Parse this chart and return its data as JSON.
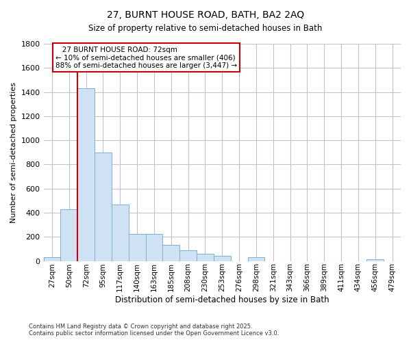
{
  "title_line1": "27, BURNT HOUSE ROAD, BATH, BA2 2AQ",
  "title_line2": "Size of property relative to semi-detached houses in Bath",
  "xlabel": "Distribution of semi-detached houses by size in Bath",
  "ylabel": "Number of semi-detached properties",
  "categories": [
    "27sqm",
    "50sqm",
    "72sqm",
    "95sqm",
    "117sqm",
    "140sqm",
    "163sqm",
    "185sqm",
    "208sqm",
    "230sqm",
    "253sqm",
    "276sqm",
    "298sqm",
    "321sqm",
    "343sqm",
    "366sqm",
    "389sqm",
    "411sqm",
    "434sqm",
    "456sqm",
    "479sqm"
  ],
  "values": [
    30,
    430,
    1430,
    900,
    470,
    225,
    225,
    135,
    90,
    60,
    45,
    0,
    30,
    0,
    0,
    0,
    0,
    0,
    0,
    15,
    0
  ],
  "bar_color": "#cfe2f3",
  "bar_edge_color": "#7ab0d4",
  "property_size": "72sqm",
  "property_label": "27 BURNT HOUSE ROAD: 72sqm",
  "pct_smaller": 10,
  "n_smaller": 406,
  "pct_larger": 88,
  "n_larger": 3447,
  "annotation_box_color": "#cc0000",
  "vline_color": "#cc0000",
  "background_color": "#ffffff",
  "grid_color": "#c0c0d0",
  "ylim": [
    0,
    1800
  ],
  "yticks": [
    0,
    200,
    400,
    600,
    800,
    1000,
    1200,
    1400,
    1600,
    1800
  ],
  "footer1": "Contains HM Land Registry data © Crown copyright and database right 2025.",
  "footer2": "Contains public sector information licensed under the Open Government Licence v3.0."
}
